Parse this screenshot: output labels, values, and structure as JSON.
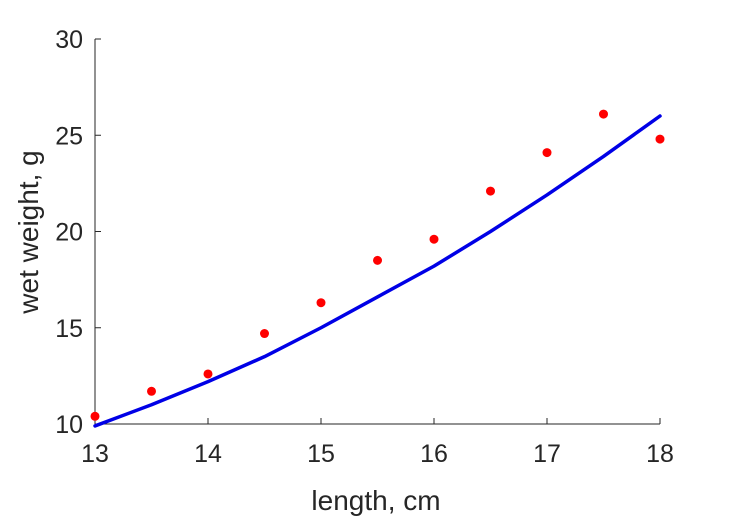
{
  "chart_data": {
    "type": "scatter",
    "title": "",
    "xlabel": "length, cm",
    "ylabel": "wet weight, g",
    "xlim": [
      13,
      18
    ],
    "ylim": [
      10,
      30
    ],
    "xticks": [
      13,
      14,
      15,
      16,
      17,
      18
    ],
    "yticks": [
      10,
      15,
      20,
      25,
      30
    ],
    "xtick_labels": [
      "13",
      "14",
      "15",
      "16",
      "17",
      "18"
    ],
    "ytick_labels": [
      "10",
      "15",
      "20",
      "25",
      "30"
    ],
    "grid": false,
    "legend": "none",
    "series": [
      {
        "kind": "scatter",
        "color": "#ff0000",
        "x": [
          13,
          13.5,
          14,
          14.5,
          15,
          15.5,
          16,
          16.5,
          17,
          17.5,
          18
        ],
        "y": [
          10.4,
          11.7,
          12.6,
          14.7,
          16.3,
          18.5,
          19.6,
          22.1,
          24.1,
          26.1,
          24.8
        ]
      },
      {
        "kind": "line",
        "color": "#0000e6",
        "x": [
          13,
          13.5,
          14,
          14.5,
          15,
          15.5,
          16,
          16.5,
          17,
          17.5,
          18
        ],
        "y": [
          9.9,
          11.0,
          12.2,
          13.5,
          15.0,
          16.6,
          18.2,
          20.0,
          21.9,
          23.9,
          26.0
        ]
      }
    ]
  }
}
